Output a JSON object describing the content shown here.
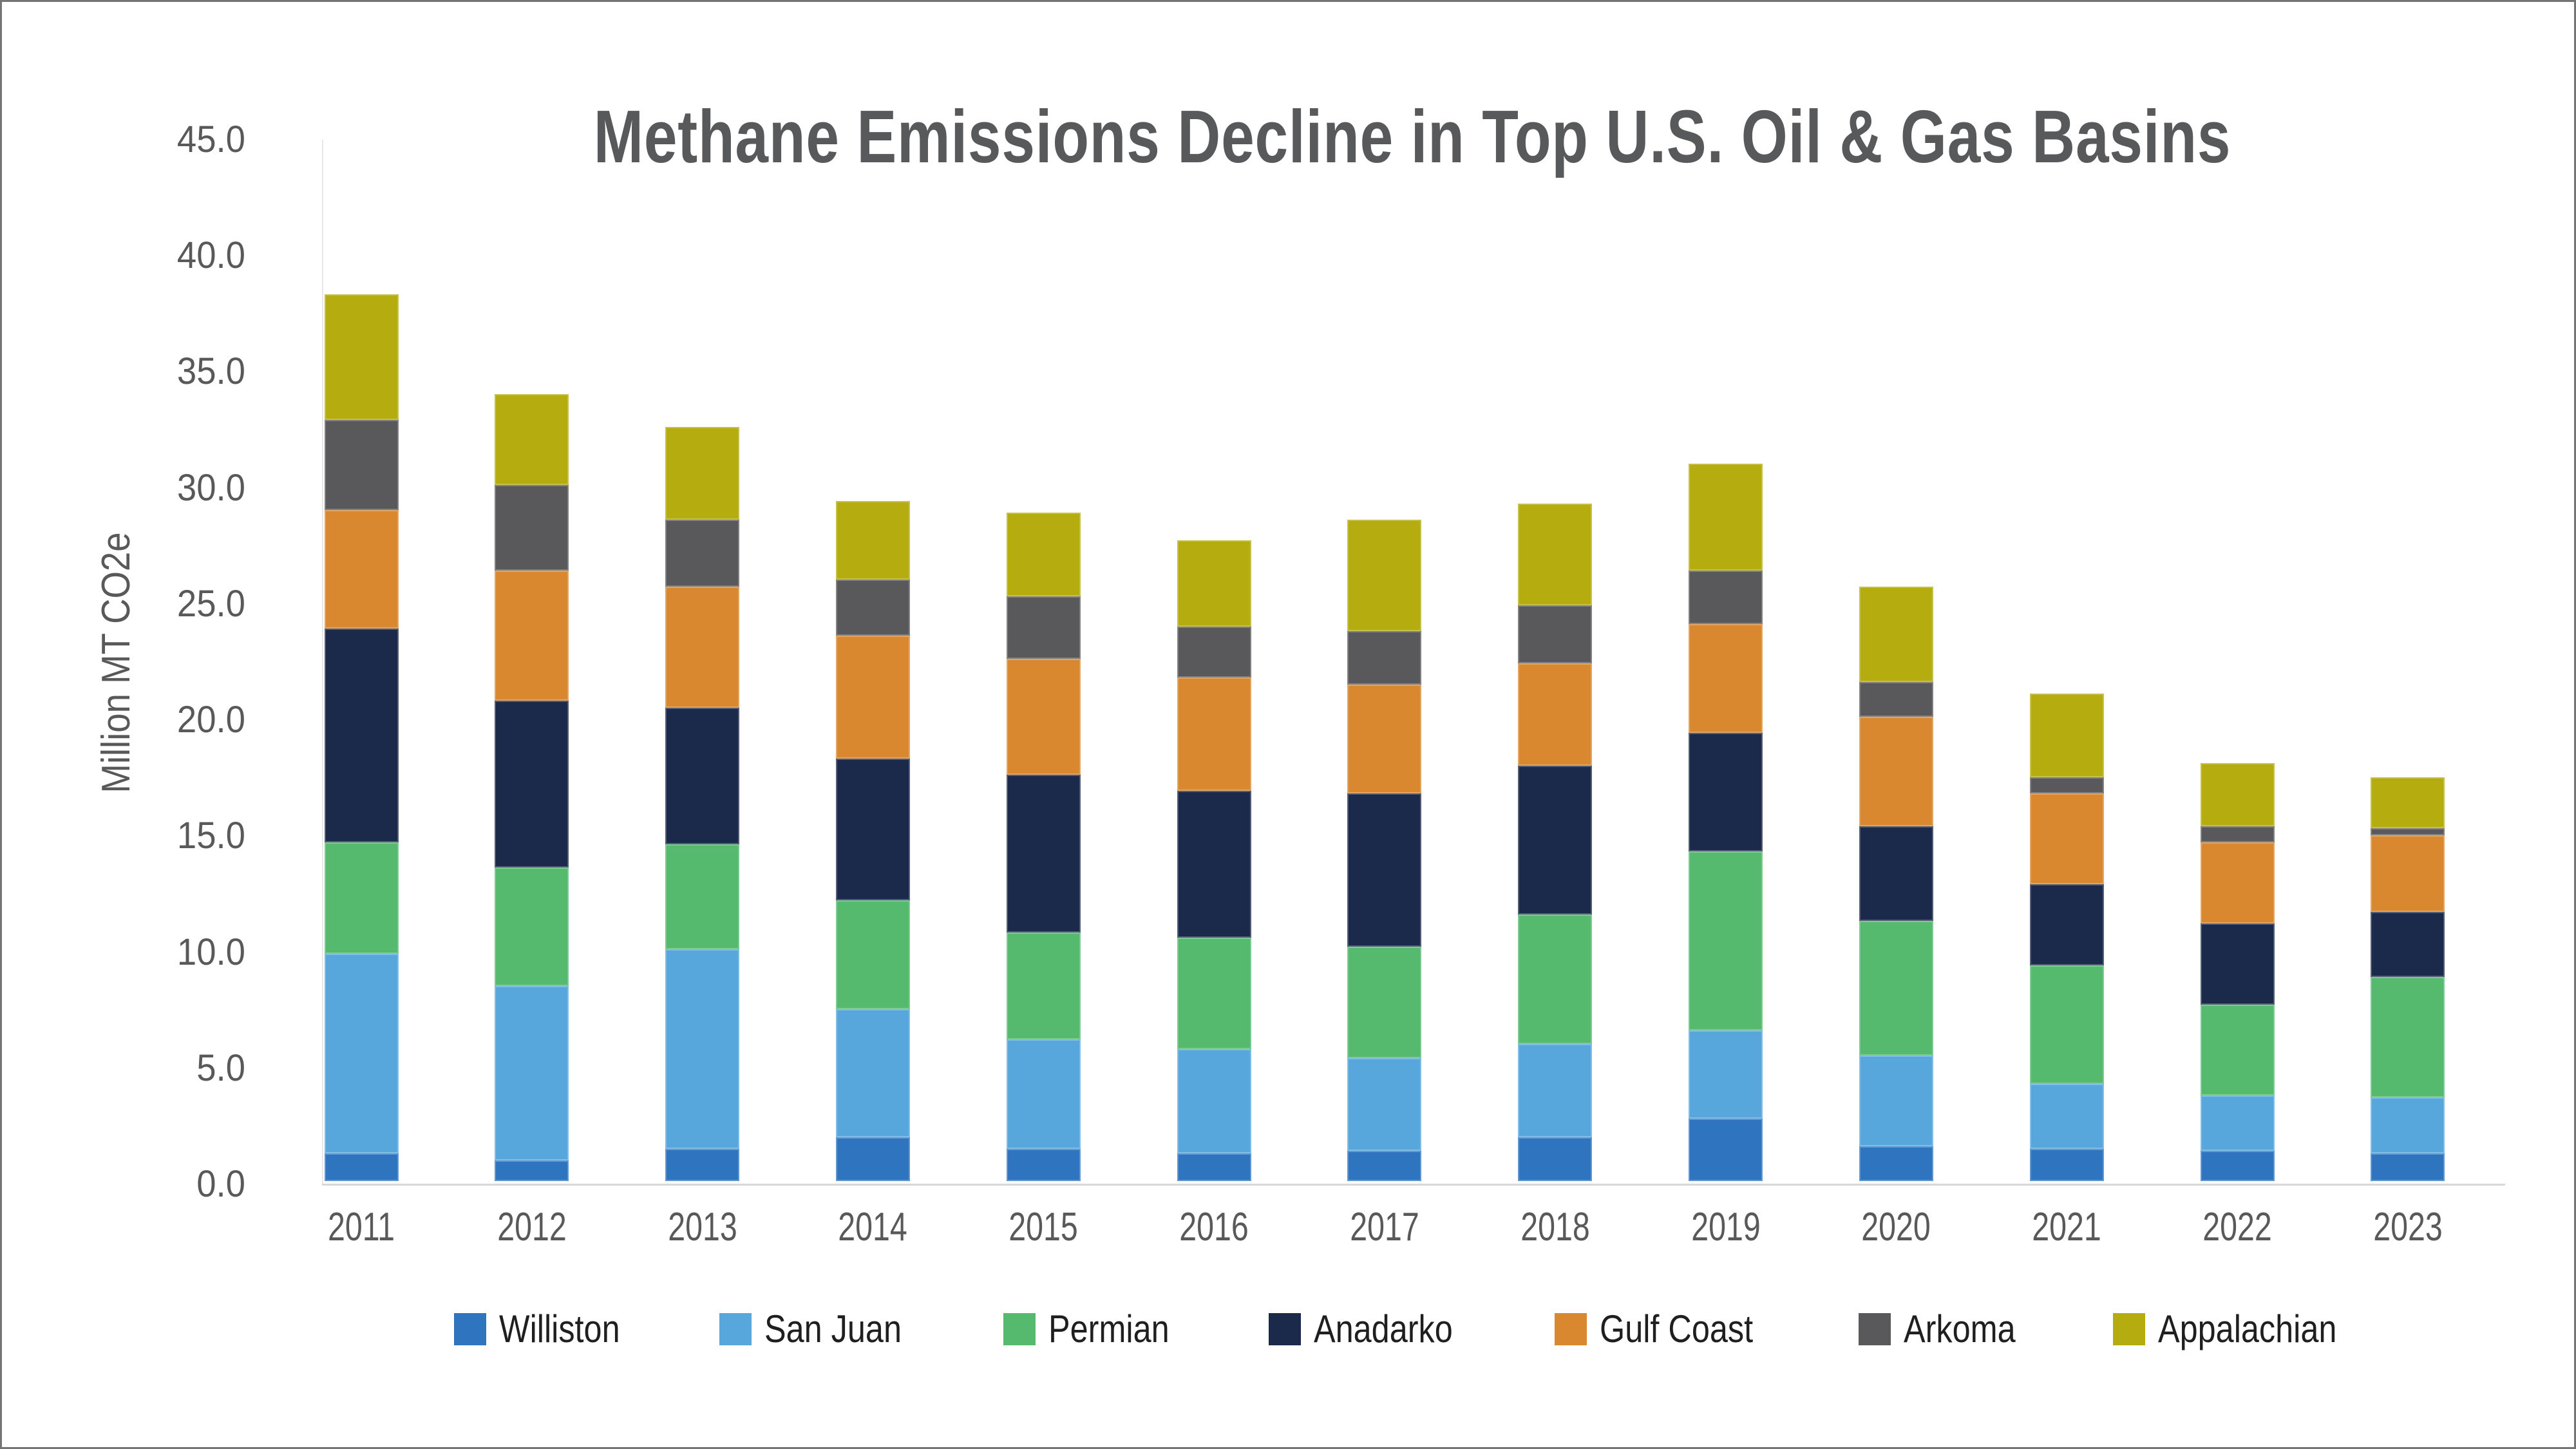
{
  "title": "Methane Emissions Decline in Top U.S. Oil & Gas Basins",
  "y_axis": {
    "title": "Million MT CO2e",
    "tick_labels": [
      "0.0",
      "5.0",
      "10.0",
      "15.0",
      "20.0",
      "25.0",
      "30.0",
      "35.0",
      "40.0",
      "45.0"
    ]
  },
  "chart_data": {
    "type": "bar",
    "stacked": true,
    "title": "Methane Emissions Decline in Top U.S. Oil & Gas Basins",
    "xlabel": "",
    "ylabel": "Million MT CO2e",
    "ylim": [
      0,
      45
    ],
    "ytick_step": 5,
    "grid": false,
    "legend_position": "bottom",
    "categories": [
      "2011",
      "2012",
      "2013",
      "2014",
      "2015",
      "2016",
      "2017",
      "2018",
      "2019",
      "2020",
      "2021",
      "2022",
      "2023"
    ],
    "series": [
      {
        "name": "Williston",
        "color": "#2e74bf",
        "values": [
          1.2,
          0.9,
          1.4,
          1.9,
          1.4,
          1.2,
          1.3,
          1.9,
          2.7,
          1.5,
          1.4,
          1.3,
          1.2
        ]
      },
      {
        "name": "San Juan",
        "color": "#57a7dc",
        "values": [
          8.6,
          7.5,
          8.6,
          5.5,
          4.7,
          4.5,
          4.0,
          4.0,
          3.8,
          3.9,
          2.8,
          2.4,
          2.4
        ]
      },
      {
        "name": "Permian",
        "color": "#55b96e",
        "values": [
          4.8,
          5.1,
          4.5,
          4.7,
          4.6,
          4.8,
          4.8,
          5.6,
          7.7,
          5.8,
          5.1,
          3.9,
          5.2
        ]
      },
      {
        "name": "Anadarko",
        "color": "#1b2a4a",
        "values": [
          9.2,
          7.2,
          5.9,
          6.1,
          6.8,
          6.3,
          6.6,
          6.4,
          5.1,
          4.1,
          3.5,
          3.5,
          2.8
        ]
      },
      {
        "name": "Gulf Coast",
        "color": "#d98830",
        "values": [
          5.1,
          5.6,
          5.2,
          5.3,
          5.0,
          4.9,
          4.7,
          4.4,
          4.7,
          4.7,
          3.9,
          3.5,
          3.3
        ]
      },
      {
        "name": "Arkoma",
        "color": "#59595b",
        "values": [
          3.9,
          3.7,
          2.9,
          2.4,
          2.7,
          2.2,
          2.3,
          2.5,
          2.3,
          1.5,
          0.7,
          0.7,
          0.3
        ]
      },
      {
        "name": "Appalachian",
        "color": "#b5ac10",
        "values": [
          5.4,
          3.9,
          4.0,
          3.4,
          3.6,
          3.7,
          4.8,
          4.4,
          4.6,
          4.1,
          3.6,
          2.7,
          2.2
        ]
      }
    ],
    "totals": [
      38.2,
      33.9,
      32.5,
      29.3,
      28.8,
      27.6,
      28.5,
      29.2,
      30.9,
      25.6,
      21.0,
      18.0,
      17.4
    ]
  }
}
